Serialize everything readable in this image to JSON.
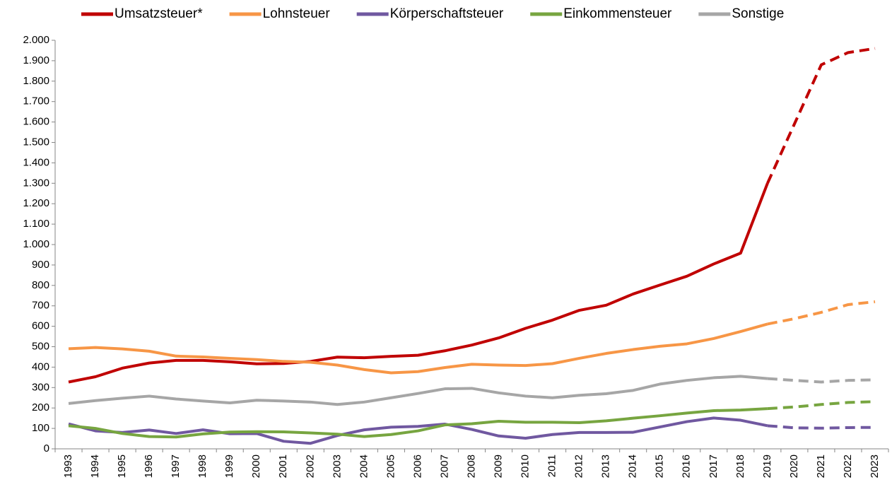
{
  "chart_data": {
    "type": "line",
    "categories": [
      "1993",
      "1994",
      "1995",
      "1996",
      "1997",
      "1998",
      "1999",
      "2000",
      "2001",
      "2002",
      "2003",
      "2004",
      "2005",
      "2006",
      "2007",
      "2008",
      "2009",
      "2010",
      "2011",
      "2012",
      "2013",
      "2014",
      "2015",
      "2016",
      "2017",
      "2018",
      "2019",
      "2020",
      "2021",
      "2022",
      "2023"
    ],
    "dashed_from": "2019",
    "series": [
      {
        "name": "Umsatzsteuer*",
        "color": "#c00000",
        "values": [
          327,
          353,
          395,
          420,
          433,
          433,
          426,
          416,
          418,
          428,
          449,
          446,
          453,
          458,
          480,
          508,
          543,
          590,
          630,
          678,
          703,
          758,
          802,
          845,
          905,
          958,
          1300,
          1590,
          1880,
          1940,
          1960
        ]
      },
      {
        "name": "Lohnsteuer",
        "color": "#f79646",
        "values": [
          490,
          496,
          489,
          478,
          454,
          450,
          443,
          437,
          428,
          424,
          410,
          388,
          372,
          378,
          398,
          414,
          410,
          408,
          417,
          443,
          467,
          486,
          502,
          514,
          540,
          574,
          611,
          637,
          668,
          706,
          720
        ]
      },
      {
        "name": "Körperschaftsteuer",
        "color": "#7058a0",
        "values": [
          122,
          88,
          80,
          92,
          75,
          93,
          74,
          75,
          37,
          27,
          65,
          93,
          106,
          110,
          121,
          95,
          63,
          52,
          70,
          80,
          80,
          81,
          107,
          133,
          151,
          140,
          113,
          103,
          101,
          104,
          105
        ]
      },
      {
        "name": "Einkommensteuer",
        "color": "#77a540",
        "values": [
          113,
          100,
          75,
          60,
          58,
          73,
          82,
          84,
          83,
          78,
          72,
          60,
          70,
          88,
          117,
          123,
          135,
          130,
          130,
          128,
          137,
          150,
          162,
          175,
          187,
          190,
          197,
          205,
          217,
          227,
          231
        ]
      },
      {
        "name": "Sonstige",
        "color": "#a6a6a6",
        "values": [
          222,
          236,
          248,
          258,
          244,
          234,
          225,
          238,
          234,
          229,
          217,
          229,
          250,
          271,
          294,
          296,
          274,
          258,
          250,
          262,
          270,
          286,
          317,
          335,
          348,
          355,
          344,
          335,
          327,
          335,
          338
        ]
      }
    ],
    "ylim": [
      0,
      2000
    ],
    "yticks": [
      0,
      100,
      200,
      300,
      400,
      500,
      600,
      700,
      800,
      900,
      {
        "value": 1000,
        "label": "1.000"
      },
      {
        "value": 1100,
        "label": "1.100"
      },
      {
        "value": 1200,
        "label": "1.200"
      },
      {
        "value": 1300,
        "label": "1.300"
      },
      {
        "value": 1400,
        "label": "1.400"
      },
      {
        "value": 1500,
        "label": "1.500"
      },
      {
        "value": 1600,
        "label": "1.600"
      },
      {
        "value": 1700,
        "label": "1.700"
      },
      {
        "value": 1800,
        "label": "1.800"
      },
      {
        "value": 1900,
        "label": "1.900"
      },
      {
        "value": 2000,
        "label": "2.000"
      }
    ],
    "legend": "top"
  }
}
